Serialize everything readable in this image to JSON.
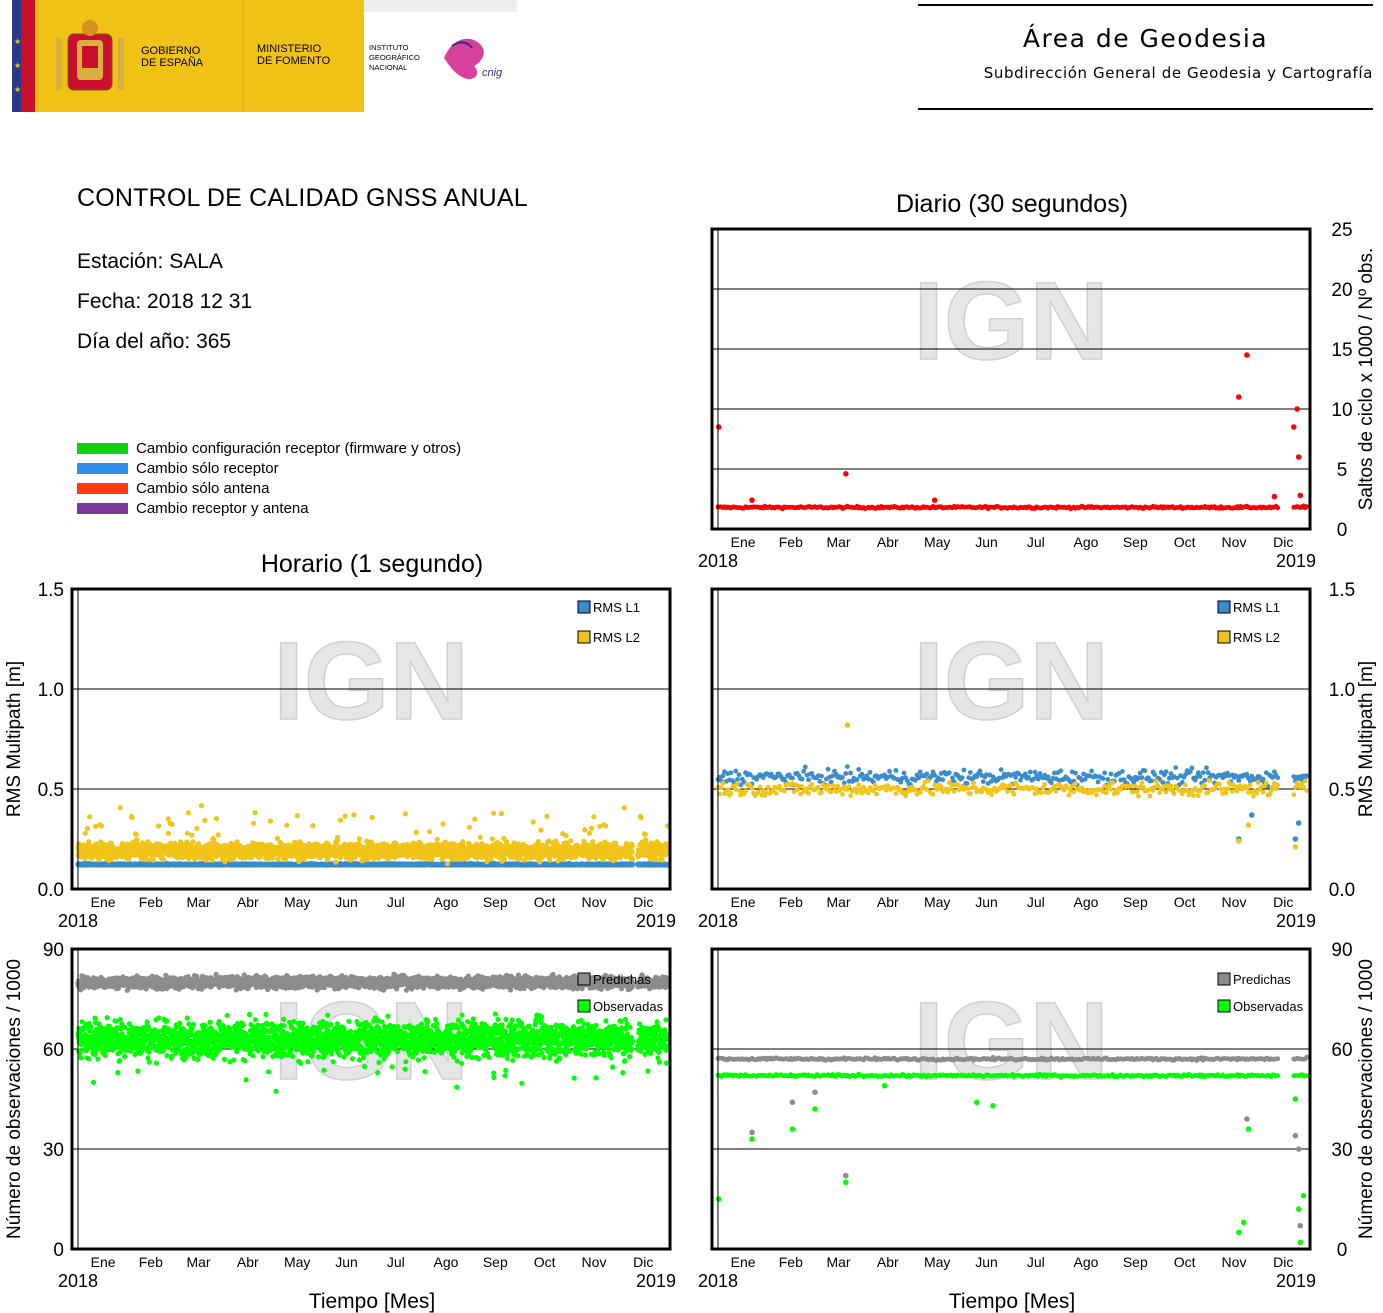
{
  "header": {
    "gov_line1": "GOBIERNO",
    "gov_line2": "DE ESPAÑA",
    "min_line1": "MINISTERIO",
    "min_line2": "DE FOMENTO",
    "ign_line1": "INSTITUTO",
    "ign_line2": "GEOGRÁFICO",
    "ign_line3": "NACIONAL",
    "cnig_logo_text": "cnig",
    "area_title": "Área de Geodesia",
    "area_subtitle": "Subdirección General de Geodesia y Cartografía"
  },
  "report": {
    "title": "CONTROL DE CALIDAD GNSS ANUAL",
    "station": "Estación: SALA",
    "date": "Fecha: 2018 12 31",
    "doy": "Día del año: 365"
  },
  "legend": {
    "items": [
      {
        "label": "Cambio configuración receptor (firmware y otros)",
        "color": "#10d010"
      },
      {
        "label": "Cambio sólo receptor",
        "color": "#2f8fe8"
      },
      {
        "label": "Cambio sólo antena",
        "color": "#ff3a10"
      },
      {
        "label": "Cambio receptor y antena",
        "color": "#7a3a98"
      }
    ]
  },
  "section_titles": {
    "daily": "Diario (30 segundos)",
    "hourly": "Horario (1 segundo)"
  },
  "watermark": "IGN",
  "months": [
    "Ene",
    "Feb",
    "Mar",
    "Abr",
    "May",
    "Jun",
    "Jul",
    "Ago",
    "Sep",
    "Oct",
    "Nov",
    "Dic"
  ],
  "year_start": "2018",
  "year_end": "2019",
  "xlabel": "Tiempo [Mes]",
  "chart_data": [
    {
      "id": "daily-cycle-slips",
      "type": "scatter",
      "ylabel": "Saltos de ciclo x 1000 / Nº obs.",
      "ylim": [
        0,
        25
      ],
      "yticks": [
        0,
        5,
        10,
        15,
        20,
        25
      ],
      "y_axis_side": "right",
      "grid": true,
      "series": [
        {
          "color": "#ff0000",
          "baseline": 1.8,
          "outliers": [
            [
              0.5,
              8.5
            ],
            [
              21,
              2.4
            ],
            [
              79,
              4.6
            ],
            [
              134,
              2.4
            ],
            [
              322,
              11
            ],
            [
              327,
              14.5
            ],
            [
              344,
              2.7
            ],
            [
              356,
              8.5
            ],
            [
              358,
              10
            ],
            [
              359,
              6
            ],
            [
              360,
              2.8
            ],
            [
              362,
              1.9
            ]
          ],
          "gap": [
            347,
            355
          ]
        }
      ]
    },
    {
      "id": "hourly-multipath",
      "type": "scatter",
      "ylabel": "RMS Multipath [m]",
      "ylim": [
        0,
        1.5
      ],
      "yticks": [
        0.0,
        0.5,
        1.0,
        1.5
      ],
      "y_axis_side": "left",
      "grid": true,
      "series": [
        {
          "name": "RMS L1",
          "color": "#3a8ccc",
          "baseline": 0.12
        },
        {
          "name": "RMS L2",
          "color": "#f0c418",
          "baseline": 0.19
        }
      ],
      "gap": [
        343,
        346
      ]
    },
    {
      "id": "daily-multipath",
      "type": "scatter",
      "ylabel": "RMS Multipath [m]",
      "ylim": [
        0,
        1.5
      ],
      "yticks": [
        0.0,
        0.5,
        1.0,
        1.5
      ],
      "y_axis_side": "right",
      "grid": true,
      "series": [
        {
          "name": "RMS L1",
          "color": "#3a8ccc",
          "baseline": 0.56,
          "outliers": [
            [
              322,
              0.25
            ],
            [
              330,
              0.37
            ],
            [
              357,
              0.25
            ],
            [
              359,
              0.33
            ]
          ]
        },
        {
          "name": "RMS L2",
          "color": "#f0c418",
          "baseline": 0.5,
          "outliers": [
            [
              80,
              0.82
            ],
            [
              322,
              0.24
            ],
            [
              328,
              0.32
            ],
            [
              357,
              0.21
            ]
          ]
        }
      ],
      "gap": [
        347,
        355
      ]
    },
    {
      "id": "hourly-observations",
      "type": "scatter",
      "ylabel": "Número de observaciones / 1000",
      "ylim": [
        0,
        90
      ],
      "yticks": [
        0,
        30,
        60,
        90
      ],
      "y_axis_side": "left",
      "grid": true,
      "series": [
        {
          "name": "Predichas",
          "color": "#8c8c8c",
          "baseline": 80
        },
        {
          "name": "Observadas",
          "color": "#00ff00",
          "baseline": 63
        }
      ],
      "gap": [
        343,
        346
      ]
    },
    {
      "id": "daily-observations",
      "type": "scatter",
      "ylabel": "Número de observaciones / 1000",
      "ylim": [
        0,
        90
      ],
      "yticks": [
        0,
        30,
        60,
        90
      ],
      "y_axis_side": "right",
      "grid": true,
      "series": [
        {
          "name": "Predichas",
          "color": "#8c8c8c",
          "baseline": 57,
          "outliers": [
            [
              21,
              35
            ],
            [
              46,
              44
            ],
            [
              60,
              47
            ],
            [
              79,
              22
            ],
            [
              103,
              52
            ],
            [
              327,
              39
            ],
            [
              357,
              34
            ],
            [
              359,
              30
            ],
            [
              360,
              7
            ]
          ]
        },
        {
          "name": "Observadas",
          "color": "#00ff00",
          "baseline": 52,
          "outliers": [
            [
              0.5,
              15
            ],
            [
              21,
              33
            ],
            [
              46,
              36
            ],
            [
              60,
              42
            ],
            [
              79,
              20
            ],
            [
              103,
              49
            ],
            [
              160,
              44
            ],
            [
              170,
              43
            ],
            [
              322,
              5
            ],
            [
              325,
              8
            ],
            [
              328,
              36
            ],
            [
              357,
              45
            ],
            [
              359,
              12
            ],
            [
              360,
              2
            ],
            [
              362,
              16
            ]
          ]
        }
      ],
      "gap": [
        347,
        355
      ]
    }
  ]
}
